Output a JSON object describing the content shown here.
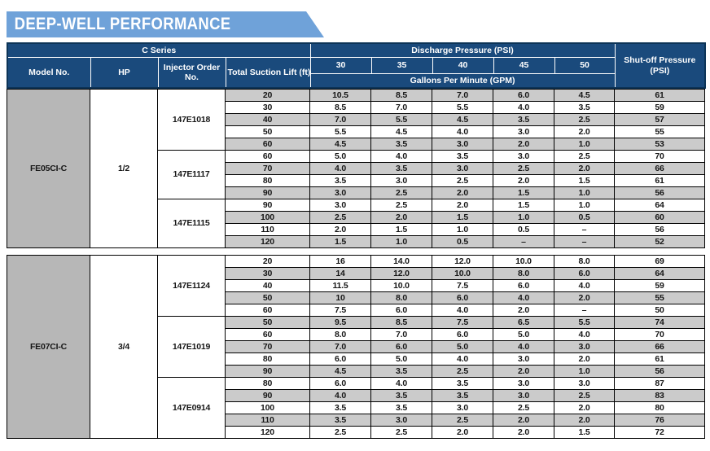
{
  "banner": {
    "title": "DEEP-WELL PERFORMANCE"
  },
  "colors": {
    "banner_blue": "#6fa2d9",
    "header_navy": "#1a4a7c",
    "stripe_gray": "#cbcbcb",
    "model_gray": "#b7b7b7"
  },
  "table": {
    "header": {
      "c_series": "C Series",
      "discharge": "Discharge Pressure (PSI)",
      "shutoff": "Shut-off Pressure (PSI)",
      "model": "Model No.",
      "hp": "HP",
      "injector": "Injector Order No.",
      "suction": "Total Suction Lift (ft)",
      "psi_cols": [
        "30",
        "35",
        "40",
        "45",
        "50"
      ],
      "gpm": "Gallons Per Minute (GPM)"
    },
    "sections": [
      {
        "model": "FE05CI-C",
        "hp": "1/2",
        "groups": [
          {
            "injector": "147E1018",
            "rows": [
              {
                "lift": "20",
                "gpm": [
                  "10.5",
                  "8.5",
                  "7.0",
                  "6.0",
                  "4.5"
                ],
                "shutoff": "61"
              },
              {
                "lift": "30",
                "gpm": [
                  "8.5",
                  "7.0",
                  "5.5",
                  "4.0",
                  "3.5"
                ],
                "shutoff": "59"
              },
              {
                "lift": "40",
                "gpm": [
                  "7.0",
                  "5.5",
                  "4.5",
                  "3.5",
                  "2.5"
                ],
                "shutoff": "57"
              },
              {
                "lift": "50",
                "gpm": [
                  "5.5",
                  "4.5",
                  "4.0",
                  "3.0",
                  "2.0"
                ],
                "shutoff": "55"
              },
              {
                "lift": "60",
                "gpm": [
                  "4.5",
                  "3.5",
                  "3.0",
                  "2.0",
                  "1.0"
                ],
                "shutoff": "53"
              }
            ]
          },
          {
            "injector": "147E1117",
            "rows": [
              {
                "lift": "60",
                "gpm": [
                  "5.0",
                  "4.0",
                  "3.5",
                  "3.0",
                  "2.5"
                ],
                "shutoff": "70"
              },
              {
                "lift": "70",
                "gpm": [
                  "4.0",
                  "3.5",
                  "3.0",
                  "2.5",
                  "2.0"
                ],
                "shutoff": "66"
              },
              {
                "lift": "80",
                "gpm": [
                  "3.5",
                  "3.0",
                  "2.5",
                  "2.0",
                  "1.5"
                ],
                "shutoff": "61"
              },
              {
                "lift": "90",
                "gpm": [
                  "3.0",
                  "2.5",
                  "2.0",
                  "1.5",
                  "1.0"
                ],
                "shutoff": "56"
              }
            ]
          },
          {
            "injector": "147E1115",
            "rows": [
              {
                "lift": "90",
                "gpm": [
                  "3.0",
                  "2.5",
                  "2.0",
                  "1.5",
                  "1.0"
                ],
                "shutoff": "64"
              },
              {
                "lift": "100",
                "gpm": [
                  "2.5",
                  "2.0",
                  "1.5",
                  "1.0",
                  "0.5"
                ],
                "shutoff": "60"
              },
              {
                "lift": "110",
                "gpm": [
                  "2.0",
                  "1.5",
                  "1.0",
                  "0.5",
                  "–"
                ],
                "shutoff": "56"
              },
              {
                "lift": "120",
                "gpm": [
                  "1.5",
                  "1.0",
                  "0.5",
                  "–",
                  "–"
                ],
                "shutoff": "52"
              }
            ]
          }
        ]
      },
      {
        "model": "FE07CI-C",
        "hp": "3/4",
        "groups": [
          {
            "injector": "147E1124",
            "rows": [
              {
                "lift": "20",
                "gpm": [
                  "16",
                  "14.0",
                  "12.0",
                  "10.0",
                  "8.0"
                ],
                "shutoff": "69"
              },
              {
                "lift": "30",
                "gpm": [
                  "14",
                  "12.0",
                  "10.0",
                  "8.0",
                  "6.0"
                ],
                "shutoff": "64"
              },
              {
                "lift": "40",
                "gpm": [
                  "11.5",
                  "10.0",
                  "7.5",
                  "6.0",
                  "4.0"
                ],
                "shutoff": "59"
              },
              {
                "lift": "50",
                "gpm": [
                  "10",
                  "8.0",
                  "6.0",
                  "4.0",
                  "2.0"
                ],
                "shutoff": "55"
              },
              {
                "lift": "60",
                "gpm": [
                  "7.5",
                  "6.0",
                  "4.0",
                  "2.0",
                  "–"
                ],
                "shutoff": "50"
              }
            ]
          },
          {
            "injector": "147E1019",
            "rows": [
              {
                "lift": "50",
                "gpm": [
                  "9.5",
                  "8.5",
                  "7.5",
                  "6.5",
                  "5.5"
                ],
                "shutoff": "74"
              },
              {
                "lift": "60",
                "gpm": [
                  "8.0",
                  "7.0",
                  "6.0",
                  "5.0",
                  "4.0"
                ],
                "shutoff": "70"
              },
              {
                "lift": "70",
                "gpm": [
                  "7.0",
                  "6.0",
                  "5.0",
                  "4.0",
                  "3.0"
                ],
                "shutoff": "66"
              },
              {
                "lift": "80",
                "gpm": [
                  "6.0",
                  "5.0",
                  "4.0",
                  "3.0",
                  "2.0"
                ],
                "shutoff": "61"
              },
              {
                "lift": "90",
                "gpm": [
                  "4.5",
                  "3.5",
                  "2.5",
                  "2.0",
                  "1.0"
                ],
                "shutoff": "56"
              }
            ]
          },
          {
            "injector": "147E0914",
            "rows": [
              {
                "lift": "80",
                "gpm": [
                  "6.0",
                  "4.0",
                  "3.5",
                  "3.0",
                  "3.0"
                ],
                "shutoff": "87"
              },
              {
                "lift": "90",
                "gpm": [
                  "4.0",
                  "3.5",
                  "3.5",
                  "3.0",
                  "2.5"
                ],
                "shutoff": "83"
              },
              {
                "lift": "100",
                "gpm": [
                  "3.5",
                  "3.5",
                  "3.0",
                  "2.5",
                  "2.0"
                ],
                "shutoff": "80"
              },
              {
                "lift": "110",
                "gpm": [
                  "3.5",
                  "3.0",
                  "2.5",
                  "2.0",
                  "2.0"
                ],
                "shutoff": "76"
              },
              {
                "lift": "120",
                "gpm": [
                  "2.5",
                  "2.5",
                  "2.0",
                  "2.0",
                  "1.5"
                ],
                "shutoff": "72"
              }
            ]
          }
        ]
      }
    ]
  }
}
